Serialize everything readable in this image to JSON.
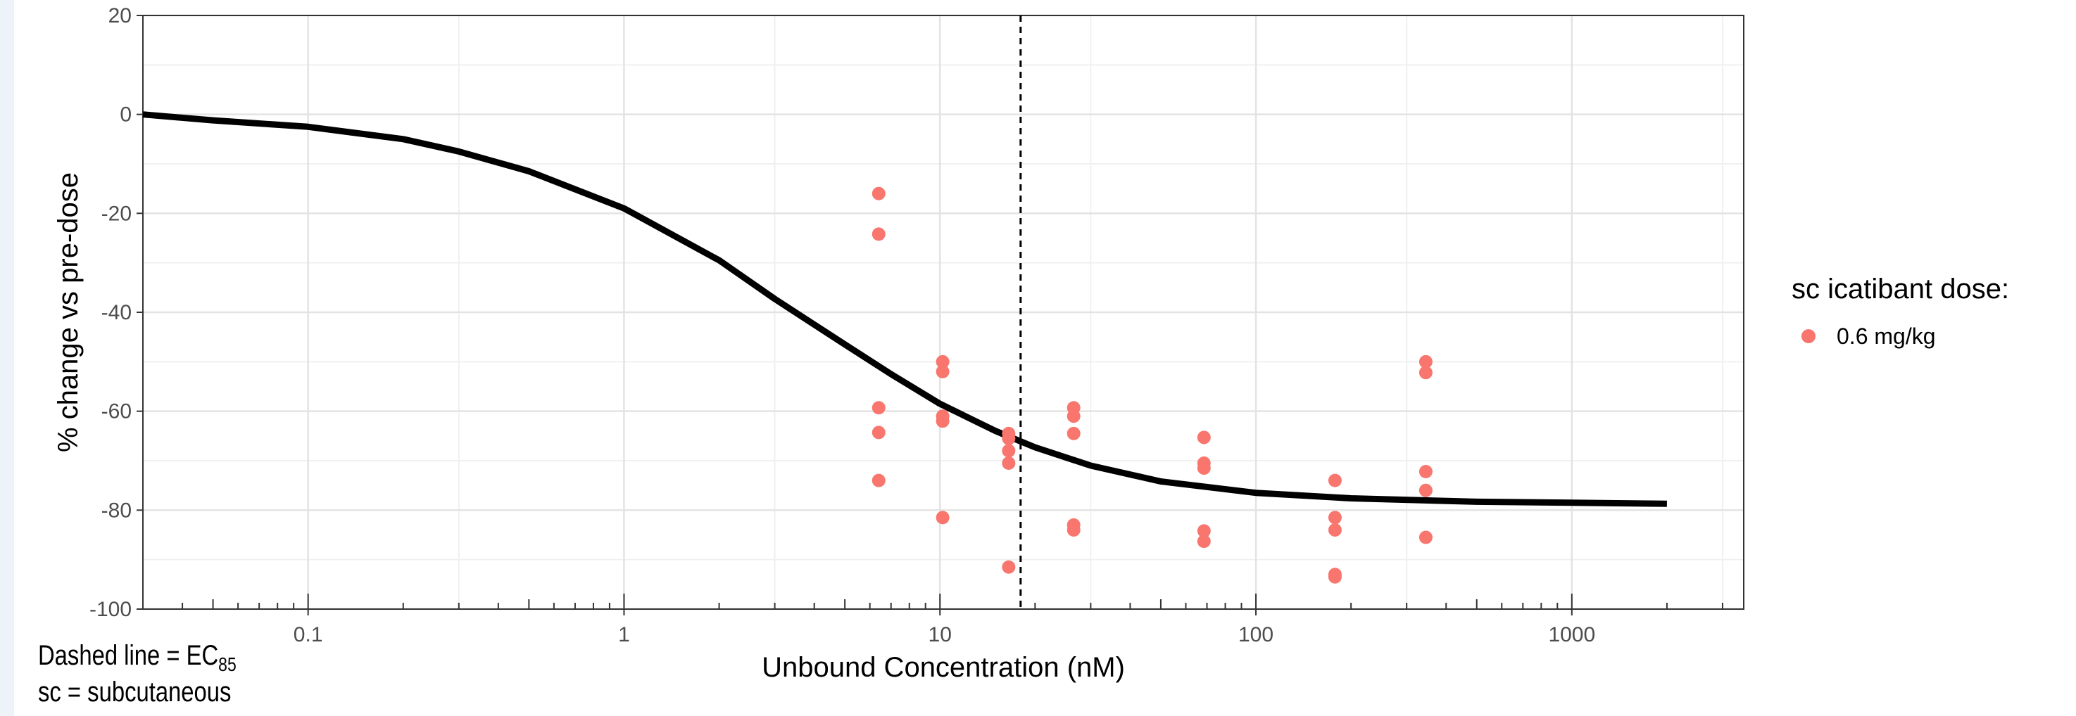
{
  "chart_data": {
    "type": "scatter",
    "title": "",
    "xlabel": "Unbound Concentration (nM)",
    "ylabel": "% change vs pre-dose",
    "xscale": "log",
    "xlim": [
      0.03,
      3500
    ],
    "ylim": [
      -100,
      20
    ],
    "x_ticks": [
      0.1,
      1,
      10,
      100,
      1000
    ],
    "x_tick_labels": [
      "0.1",
      "1",
      "10",
      "100",
      "1000"
    ],
    "y_ticks": [
      20,
      0,
      -20,
      -40,
      -60,
      -80,
      -100
    ],
    "y_tick_labels": [
      "20",
      "0",
      "-20",
      "-40",
      "-60",
      "-80",
      "-100"
    ],
    "grid": true,
    "legend": {
      "title": "sc icatibant dose:",
      "placement": "right",
      "entries": [
        {
          "label": "0.6 mg/kg",
          "color": "#F8766D"
        }
      ]
    },
    "series": [
      {
        "name": "0.6 mg/kg",
        "type": "scatter",
        "color": "#F8766D",
        "points": [
          [
            6.4,
            -16
          ],
          [
            6.4,
            -24.2
          ],
          [
            6.4,
            -59.3
          ],
          [
            6.4,
            -64.3
          ],
          [
            6.4,
            -74
          ],
          [
            10.2,
            -50
          ],
          [
            10.2,
            -52
          ],
          [
            10.2,
            -61
          ],
          [
            10.2,
            -62
          ],
          [
            10.2,
            -81.5
          ],
          [
            16.5,
            -64.5
          ],
          [
            16.5,
            -65.5
          ],
          [
            16.5,
            -68
          ],
          [
            16.5,
            -70.5
          ],
          [
            16.5,
            -91.5
          ],
          [
            26.5,
            -59.3
          ],
          [
            26.5,
            -61
          ],
          [
            26.5,
            -64.5
          ],
          [
            26.5,
            -83
          ],
          [
            26.5,
            -84
          ],
          [
            68.5,
            -65.3
          ],
          [
            68.5,
            -70.5
          ],
          [
            68.5,
            -71.5
          ],
          [
            68.5,
            -84.2
          ],
          [
            68.5,
            -86.3
          ],
          [
            178,
            -74
          ],
          [
            178,
            -81.5
          ],
          [
            178,
            -84
          ],
          [
            178,
            -93
          ],
          [
            178,
            -93.5
          ],
          [
            345,
            -50
          ],
          [
            345,
            -52.2
          ],
          [
            345,
            -72.2
          ],
          [
            345,
            -76
          ],
          [
            345,
            -85.5
          ]
        ]
      },
      {
        "type": "line",
        "color": "#000000",
        "points": [
          [
            0.03,
            0
          ],
          [
            0.05,
            -1.2
          ],
          [
            0.1,
            -2.5
          ],
          [
            0.2,
            -5
          ],
          [
            0.3,
            -7.5
          ],
          [
            0.5,
            -11.5
          ],
          [
            1,
            -19
          ],
          [
            2,
            -29.5
          ],
          [
            3,
            -37.3
          ],
          [
            5,
            -46.5
          ],
          [
            7,
            -52.5
          ],
          [
            10,
            -58.5
          ],
          [
            15,
            -64
          ],
          [
            20,
            -67.3
          ],
          [
            30,
            -71
          ],
          [
            50,
            -74.2
          ],
          [
            100,
            -76.5
          ],
          [
            200,
            -77.6
          ],
          [
            500,
            -78.3
          ],
          [
            1000,
            -78.5
          ],
          [
            2000,
            -78.7
          ]
        ]
      }
    ],
    "vline": {
      "x": 18,
      "style": "dashed",
      "color": "#000000"
    }
  },
  "footnotes": {
    "line1_prefix": "Dashed line = EC",
    "line1_sub": "85",
    "line2": "sc = subcutaneous"
  }
}
